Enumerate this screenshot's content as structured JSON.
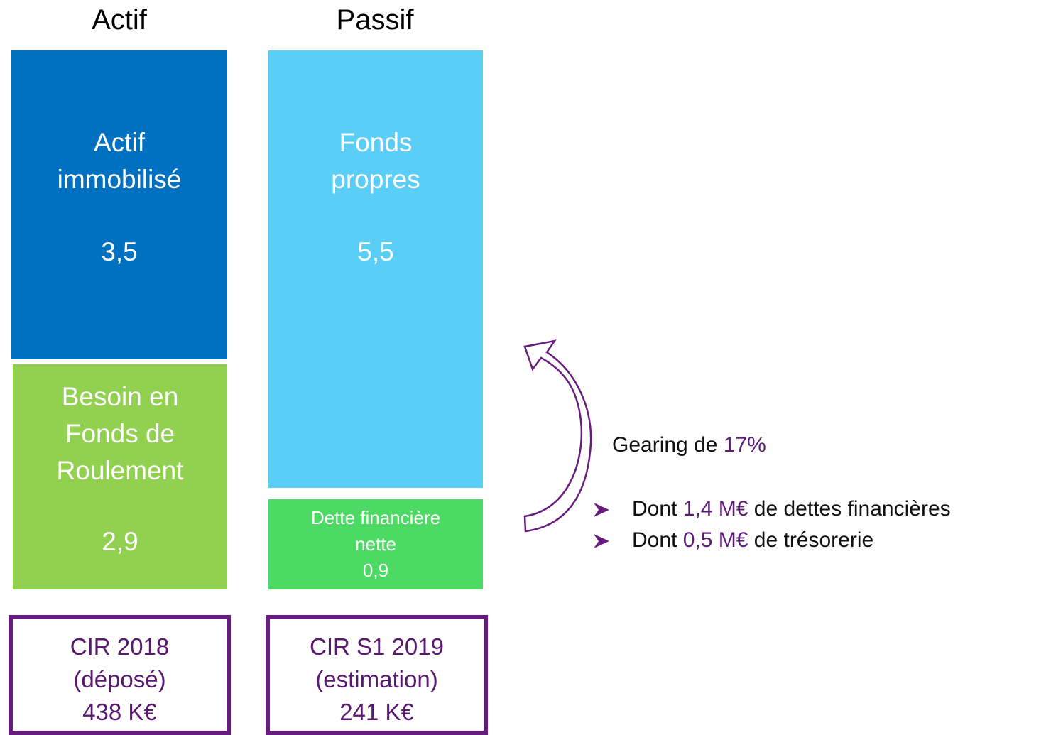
{
  "columns": [
    {
      "title": "Actif",
      "blocks": [
        {
          "label": [
            "Actif",
            "immobilisé"
          ],
          "value": "3,5"
        },
        {
          "label": [
            "Besoin en",
            "Fonds de",
            "Roulement"
          ],
          "value": "2,9"
        }
      ],
      "box": [
        "CIR 2018",
        "(déposé)",
        "438 K€"
      ]
    },
    {
      "title": "Passif",
      "blocks": [
        {
          "label": [
            "Fonds",
            "propres"
          ],
          "value": "5,5"
        },
        {
          "label": [
            "Dette financière",
            "nette"
          ],
          "value": "0,9"
        }
      ],
      "box": [
        "CIR S1 2019",
        "(estimation)",
        "241 K€"
      ]
    }
  ],
  "gearing": {
    "text": "Gearing de",
    "value": "17%"
  },
  "bullets": [
    {
      "prefix": "Dont",
      "amount": "1,4 M€",
      "suffix": "de dettes financières"
    },
    {
      "prefix": "Dont",
      "amount": "0,5 M€",
      "suffix": "de trésorerie"
    }
  ]
}
